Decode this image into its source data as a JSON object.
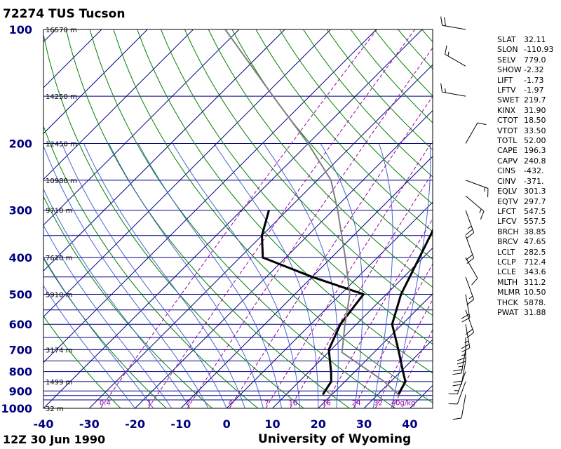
{
  "header": {
    "station_title": "72274 TUS Tucson"
  },
  "footer": {
    "time_label": "12Z 30 Jun 1990",
    "source_label": "University of Wyoming"
  },
  "colors": {
    "isobar": "#000080",
    "isotherm": "#000080",
    "dry_adiabat": "#008000",
    "moist_adiabat": "#3355cc",
    "mixing_ratio": "#9900aa",
    "temperature": "#000000",
    "dewpoint": "#000000",
    "parcel": "#7f7f7f",
    "axis_label": "#000080"
  },
  "indices": [
    {
      "name": "SLAT",
      "value": "32.11"
    },
    {
      "name": "SLON",
      "value": "-110.93"
    },
    {
      "name": "SELV",
      "value": "779.0"
    },
    {
      "name": "SHOW",
      "value": "-2.32"
    },
    {
      "name": "LIFT",
      "value": "-1.73"
    },
    {
      "name": "LFTV",
      "value": "-1.97"
    },
    {
      "name": "SWET",
      "value": "219.7"
    },
    {
      "name": "KINX",
      "value": "31.90"
    },
    {
      "name": "CTOT",
      "value": "18.50"
    },
    {
      "name": "VTOT",
      "value": "33.50"
    },
    {
      "name": "TOTL",
      "value": "52.00"
    },
    {
      "name": "CAPE",
      "value": "196.3"
    },
    {
      "name": "CAPV",
      "value": "240.8"
    },
    {
      "name": "CINS",
      "value": "-432."
    },
    {
      "name": "CINV",
      "value": "-371."
    },
    {
      "name": "EQLV",
      "value": "301.3"
    },
    {
      "name": "EQTV",
      "value": "297.7"
    },
    {
      "name": "LFCT",
      "value": "547.5"
    },
    {
      "name": "LFCV",
      "value": "557.5"
    },
    {
      "name": "BRCH",
      "value": "38.85"
    },
    {
      "name": "BRCV",
      "value": "47.65"
    },
    {
      "name": "LCLT",
      "value": "282.5"
    },
    {
      "name": "LCLP",
      "value": "712.4"
    },
    {
      "name": "LCLE",
      "value": "343.6"
    },
    {
      "name": "MLTH",
      "value": "311.2"
    },
    {
      "name": "MLMR",
      "value": "10.50"
    },
    {
      "name": "THCK",
      "value": "5878."
    },
    {
      "name": "PWAT",
      "value": "31.88"
    }
  ],
  "chart_data": {
    "type": "skew-t",
    "title": "72274 TUS Tucson",
    "xlabel": "",
    "ylabel": "",
    "x_ticks": [
      "-40",
      "-30",
      "-20",
      "-10",
      "0",
      "10",
      "20",
      "30",
      "40"
    ],
    "x_tick_values": [
      -40,
      -30,
      -20,
      -10,
      0,
      10,
      20,
      30,
      40
    ],
    "xlim": [
      -40,
      45
    ],
    "ylim_hpa": [
      1000,
      100
    ],
    "y_log_scale": true,
    "y_ticks": [
      "100",
      "200",
      "300",
      "400",
      "500",
      "600",
      "700",
      "800",
      "900",
      "1000"
    ],
    "y_tick_values": [
      100,
      200,
      300,
      400,
      500,
      600,
      700,
      800,
      900,
      1000
    ],
    "height_labels": [
      {
        "p": 100,
        "label": "16570 m"
      },
      {
        "p": 150,
        "label": "14250 m"
      },
      {
        "p": 200,
        "label": "12450 m"
      },
      {
        "p": 250,
        "label": "10980 m"
      },
      {
        "p": 300,
        "label": "9710 m"
      },
      {
        "p": 400,
        "label": "7610 m"
      },
      {
        "p": 500,
        "label": "5910 m"
      },
      {
        "p": 700,
        "label": "3174 m"
      },
      {
        "p": 850,
        "label": "1499 m"
      },
      {
        "p": 1000,
        "label": "32 m"
      }
    ],
    "mixing_ratio_labels": [
      {
        "w": 0.4,
        "label": "0.4"
      },
      {
        "w": 1,
        "label": "1"
      },
      {
        "w": 2,
        "label": "2"
      },
      {
        "w": 4,
        "label": "4"
      },
      {
        "w": 7,
        "label": "7"
      },
      {
        "w": 10,
        "label": "10"
      },
      {
        "w": 16,
        "label": "16"
      },
      {
        "w": 24,
        "label": "24"
      },
      {
        "w": 32,
        "label": "32"
      },
      {
        "w": 40,
        "label": "40g/kg"
      }
    ],
    "isobars_hpa": [
      100,
      150,
      200,
      250,
      300,
      350,
      400,
      450,
      500,
      550,
      600,
      650,
      700,
      750,
      800,
      850,
      900,
      925,
      950,
      1000
    ],
    "series": [
      {
        "name": "",
        "kind": "temperature",
        "points": [
          [
            920,
            34.5
          ],
          [
            850,
            33.2
          ],
          [
            800,
            30.5
          ],
          [
            700,
            24.7
          ],
          [
            600,
            17.8
          ],
          [
            500,
            13.2
          ],
          [
            400,
            9.2
          ],
          [
            300,
            4.0
          ],
          [
            250,
            -0.5
          ],
          [
            200,
            -4.5
          ],
          [
            150,
            -7.8
          ],
          [
            110,
            -6.3
          ],
          [
            100,
            -5.8
          ]
        ]
      },
      {
        "name": "",
        "kind": "dewpoint",
        "points": [
          [
            920,
            18.0
          ],
          [
            850,
            17.0
          ],
          [
            800,
            14.8
          ],
          [
            700,
            9.5
          ],
          [
            600,
            6.5
          ],
          [
            500,
            5.0
          ],
          [
            450,
            -10.0
          ],
          [
            400,
            -25.0
          ],
          [
            350,
            -30.0
          ],
          [
            300,
            -34.0
          ]
        ]
      },
      {
        "name": "",
        "kind": "parcel",
        "points": [
          [
            920,
            34.5
          ],
          [
            850,
            28.6
          ],
          [
            712,
            13.0
          ],
          [
            600,
            7.5
          ],
          [
            500,
            2.0
          ],
          [
            400,
            -7.0
          ],
          [
            300,
            -19.0
          ],
          [
            250,
            -27.0
          ],
          [
            200,
            -40.0
          ],
          [
            150,
            -58.0
          ],
          [
            100,
            -83.0
          ]
        ]
      }
    ],
    "wind_barbs": [
      {
        "p": 920,
        "dir": 190,
        "kt": 10
      },
      {
        "p": 850,
        "dir": 200,
        "kt": 10
      },
      {
        "p": 800,
        "dir": 200,
        "kt": 15
      },
      {
        "p": 750,
        "dir": 190,
        "kt": 20
      },
      {
        "p": 700,
        "dir": 190,
        "kt": 25
      },
      {
        "p": 650,
        "dir": 180,
        "kt": 25
      },
      {
        "p": 600,
        "dir": 170,
        "kt": 25
      },
      {
        "p": 550,
        "dir": 160,
        "kt": 20
      },
      {
        "p": 500,
        "dir": 170,
        "kt": 20
      },
      {
        "p": 450,
        "dir": 160,
        "kt": 15
      },
      {
        "p": 400,
        "dir": 150,
        "kt": 10
      },
      {
        "p": 350,
        "dir": 160,
        "kt": 20
      },
      {
        "p": 300,
        "dir": 160,
        "kt": 25
      },
      {
        "p": 275,
        "dir": 130,
        "kt": 15
      },
      {
        "p": 250,
        "dir": 110,
        "kt": 15
      },
      {
        "p": 200,
        "dir": 30,
        "kt": 10
      },
      {
        "p": 150,
        "dir": 280,
        "kt": 15
      },
      {
        "p": 125,
        "dir": 300,
        "kt": 15
      },
      {
        "p": 100,
        "dir": 280,
        "kt": 20
      }
    ]
  }
}
